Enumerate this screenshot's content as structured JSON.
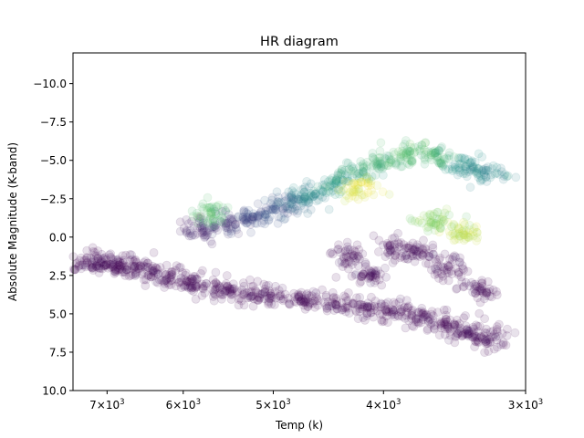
{
  "chart_data": {
    "type": "scatter",
    "title": "HR diagram",
    "xlabel": "Temp (k)",
    "ylabel": "Absolute Magnitude (K-band)",
    "xscale": "log",
    "xaxis_inverted": true,
    "yaxis_inverted": true,
    "xlim": [
      7500,
      3000
    ],
    "ylim": [
      10.0,
      -12.0
    ],
    "xticks": [
      {
        "value": 7000,
        "mantissa": "7",
        "base": "10",
        "exp": "3"
      },
      {
        "value": 6000,
        "mantissa": "6",
        "base": "10",
        "exp": "3"
      },
      {
        "value": 5000,
        "mantissa": "5",
        "base": "10",
        "exp": "3"
      },
      {
        "value": 4000,
        "mantissa": "4",
        "base": "10",
        "exp": "3"
      },
      {
        "value": 3000,
        "mantissa": "3",
        "base": "10",
        "exp": "3"
      }
    ],
    "yticks": [
      {
        "value": -10.0,
        "label": "−10.0"
      },
      {
        "value": -7.5,
        "label": "−7.5"
      },
      {
        "value": -5.0,
        "label": "−5.0"
      },
      {
        "value": -2.5,
        "label": "−2.5"
      },
      {
        "value": 0.0,
        "label": "0.0"
      },
      {
        "value": 2.5,
        "label": "2.5"
      },
      {
        "value": 5.0,
        "label": "5.0"
      },
      {
        "value": 7.5,
        "label": "7.5"
      },
      {
        "value": 10.0,
        "label": "10.0"
      }
    ],
    "grid": false,
    "legend": "none",
    "point_alpha": 0.12,
    "colormap": "viridis",
    "colormap_stops": [
      "#440154",
      "#3b528b",
      "#21918c",
      "#5ec962",
      "#fde725"
    ],
    "sample_points": [
      {
        "x": 7250,
        "y": 1.6,
        "c": 0.0
      },
      {
        "x": 7000,
        "y": 1.7,
        "c": 0.0
      },
      {
        "x": 6800,
        "y": 1.9,
        "c": 0.0
      },
      {
        "x": 6500,
        "y": 2.2,
        "c": 0.0
      },
      {
        "x": 6200,
        "y": 2.6,
        "c": 0.0
      },
      {
        "x": 5900,
        "y": 2.9,
        "c": 0.0
      },
      {
        "x": 5600,
        "y": 3.3,
        "c": 0.0
      },
      {
        "x": 5300,
        "y": 3.6,
        "c": 0.0
      },
      {
        "x": 5000,
        "y": 3.8,
        "c": 0.0
      },
      {
        "x": 4700,
        "y": 4.1,
        "c": 0.0
      },
      {
        "x": 4400,
        "y": 4.3,
        "c": 0.0
      },
      {
        "x": 4100,
        "y": 4.6,
        "c": 0.0
      },
      {
        "x": 3900,
        "y": 4.8,
        "c": 0.0
      },
      {
        "x": 3700,
        "y": 5.2,
        "c": 0.0
      },
      {
        "x": 3500,
        "y": 5.8,
        "c": 0.0
      },
      {
        "x": 3350,
        "y": 6.3,
        "c": 0.0
      },
      {
        "x": 3250,
        "y": 6.6,
        "c": 0.0
      },
      {
        "x": 5800,
        "y": -0.5,
        "c": 0.1
      },
      {
        "x": 5500,
        "y": -0.8,
        "c": 0.15
      },
      {
        "x": 5200,
        "y": -1.2,
        "c": 0.2
      },
      {
        "x": 5000,
        "y": -1.8,
        "c": 0.25
      },
      {
        "x": 4800,
        "y": -2.2,
        "c": 0.35
      },
      {
        "x": 4600,
        "y": -2.8,
        "c": 0.45
      },
      {
        "x": 4400,
        "y": -3.5,
        "c": 0.55
      },
      {
        "x": 4200,
        "y": -4.3,
        "c": 0.6
      },
      {
        "x": 4000,
        "y": -4.9,
        "c": 0.65
      },
      {
        "x": 3800,
        "y": -5.4,
        "c": 0.7
      },
      {
        "x": 3600,
        "y": -5.3,
        "c": 0.65
      },
      {
        "x": 3400,
        "y": -4.6,
        "c": 0.5
      },
      {
        "x": 3250,
        "y": -4.2,
        "c": 0.45
      },
      {
        "x": 4300,
        "y": 1.2,
        "c": 0.0
      },
      {
        "x": 4100,
        "y": 2.5,
        "c": 0.0
      },
      {
        "x": 3900,
        "y": 0.8,
        "c": 0.0
      },
      {
        "x": 3700,
        "y": 1.0,
        "c": 0.0
      },
      {
        "x": 3500,
        "y": 2.0,
        "c": 0.0
      },
      {
        "x": 3300,
        "y": 3.5,
        "c": 0.0
      },
      {
        "x": 5700,
        "y": -1.5,
        "c": 0.7
      },
      {
        "x": 4200,
        "y": -3.2,
        "c": 0.95
      },
      {
        "x": 3400,
        "y": -0.3,
        "c": 0.9
      },
      {
        "x": 3600,
        "y": -1.0,
        "c": 0.8
      }
    ]
  }
}
